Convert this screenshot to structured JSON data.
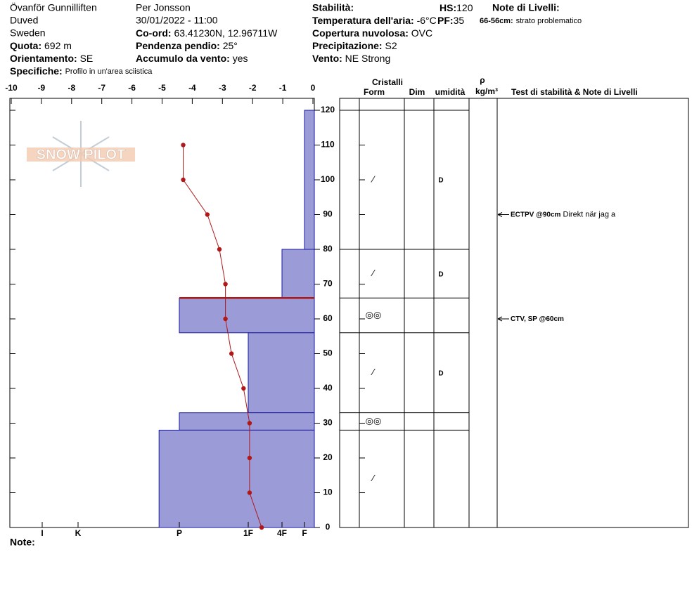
{
  "header": {
    "location": [
      "Övanför Gunnilliften",
      "Duved",
      "Sweden"
    ],
    "observer": "Per Jonsson",
    "datetime": "30/01/2022 - 11:00",
    "quota": {
      "label": "Quota:",
      "value": "692 m"
    },
    "orientamento": {
      "label": "Orientamento:",
      "value": "SE"
    },
    "specifiche": {
      "label": "Specifiche:",
      "value": "Profilo in un'area sciistica"
    },
    "coord": {
      "label": "Co-ord:",
      "value": "63.41230N, 12.96711W"
    },
    "pendenza": {
      "label": "Pendenza pendio:",
      "value": "25°"
    },
    "accumulo": {
      "label": "Accumulo da vento:",
      "value": "yes"
    },
    "stabilita": {
      "label": "Stabilità:"
    },
    "temperatura": {
      "label": "Temperatura dell'aria:",
      "value": "-6°C"
    },
    "copertura": {
      "label": "Copertura nuvolosa:",
      "value": "OVC"
    },
    "precipitazione": {
      "label": "Precipitazione:",
      "value": "S2"
    },
    "vento": {
      "label": "Vento:",
      "value": "NE Strong"
    },
    "hs": {
      "label": "HS:",
      "value": "120"
    },
    "pf": {
      "label": "PF:",
      "value": "35"
    },
    "note_livelli": {
      "label": "Note di Livelli:"
    },
    "layer_note": {
      "label": "66-56cm:",
      "value": "strato problematico"
    },
    "logo": "SNOW PILOT",
    "note": "Note:"
  },
  "chart_data": {
    "type": "snowprofile",
    "xlim": [
      -10,
      0
    ],
    "xticks": [
      -10,
      -9,
      -8,
      -7,
      -6,
      -5,
      -4,
      -3,
      -2,
      -1,
      0
    ],
    "hardness_ticks": [
      {
        "value": 6,
        "label": "I"
      },
      {
        "value": 5,
        "label": "K"
      },
      {
        "value": 4,
        "label": "P"
      },
      {
        "value": 3,
        "label": "1F"
      },
      {
        "value": 2,
        "label": "4F"
      },
      {
        "value": 1,
        "label": "F"
      }
    ],
    "ylim": [
      0,
      120
    ],
    "yticks": [
      0,
      10,
      20,
      30,
      40,
      50,
      60,
      70,
      80,
      90,
      100,
      110,
      120
    ],
    "bar_color": "#9b9bd7",
    "line_color": "#b01818",
    "temperature": {
      "depth": [
        110,
        100,
        90,
        80,
        70,
        60,
        50,
        40,
        30,
        20,
        10,
        0
      ],
      "values": [
        -4.3,
        -4.3,
        -3.5,
        -3.1,
        -2.9,
        -2.9,
        -2.7,
        -2.3,
        -2.1,
        -2.1,
        -2.1,
        -1.7
      ]
    },
    "columns": {
      "crystals": "Cristalli",
      "form": "Form",
      "dim": "Dim",
      "moisture": "umidità",
      "rho": "ρ",
      "density_unit": "kg/m³",
      "tests": "Test di stabilità & Note di Livelli"
    },
    "layers": [
      {
        "top": 120,
        "bottom": 80,
        "hardness": 1,
        "form": "⁄",
        "moisture": "D"
      },
      {
        "top": 80,
        "bottom": 66,
        "hardness": 2,
        "form": "⁄",
        "moisture": "D"
      },
      {
        "top": 66,
        "bottom": 56,
        "hardness": 4,
        "form": "◎◎",
        "problem": true
      },
      {
        "top": 56,
        "bottom": 33,
        "hardness": 3,
        "form": "⁄",
        "moisture": "D"
      },
      {
        "top": 33,
        "bottom": 28,
        "hardness": 4,
        "form": "◎◎"
      },
      {
        "top": 28,
        "bottom": 0,
        "hardness": 4.2,
        "form": "⁄"
      }
    ],
    "tests": [
      {
        "depth": 90,
        "result": "ECTPV @90cm",
        "comment": "Direkt när jag a"
      },
      {
        "depth": 60,
        "result": "CTV, SP @60cm"
      }
    ]
  }
}
